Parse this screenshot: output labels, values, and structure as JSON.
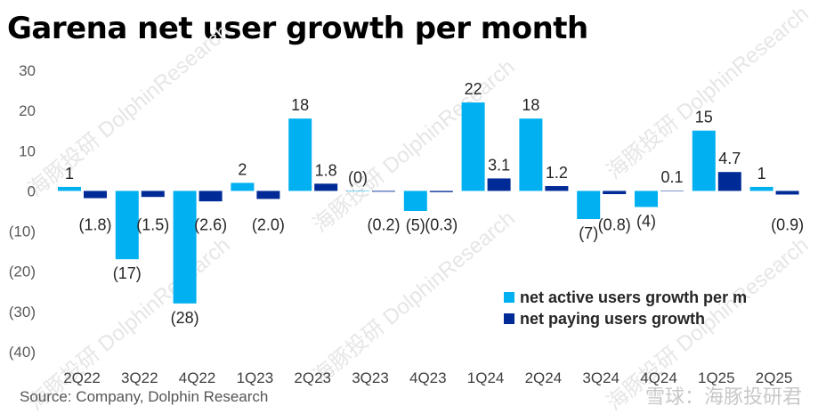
{
  "title": "Garena net user growth per month",
  "source": "Source: Company, Dolphin Research",
  "watermark": "雪球：海豚投研君",
  "watermark_bg": "海豚投研 DolphinResearch",
  "colors": {
    "active": "#00b0f0",
    "paying": "#002b96"
  },
  "chart_data": {
    "type": "bar",
    "categories": [
      "2Q22",
      "3Q22",
      "4Q22",
      "1Q23",
      "2Q23",
      "3Q23",
      "4Q23",
      "1Q24",
      "2Q24",
      "3Q24",
      "4Q24",
      "1Q25",
      "2Q25"
    ],
    "ylim": [
      -40,
      30
    ],
    "yticks": [
      30,
      20,
      10,
      0,
      -10,
      -20,
      -30,
      -40
    ],
    "ytick_labels": [
      "30",
      "20",
      "10",
      "0",
      "(10)",
      "(20)",
      "(30)",
      "(40)"
    ],
    "series": [
      {
        "name": "net active users growth per m",
        "values": [
          1,
          -17,
          -28,
          2,
          18,
          0,
          -5,
          22,
          18,
          -7,
          -4,
          15,
          1
        ],
        "labels": [
          "1",
          "(17)",
          "(28)",
          "2",
          "18",
          "(0)",
          "(5)",
          "22",
          "18",
          "(7)",
          "(4)",
          "15",
          "1"
        ]
      },
      {
        "name": "net paying users growth",
        "values": [
          -1.8,
          -1.5,
          -2.6,
          -2.0,
          1.8,
          -0.2,
          -0.3,
          3.1,
          1.2,
          -0.8,
          0.1,
          4.7,
          -0.9
        ],
        "labels": [
          "(1.8)",
          "(1.5)",
          "(2.6)",
          "(2.0)",
          "1.8",
          "(0.2)",
          "(0.3)",
          "3.1",
          "1.2",
          "(0.8)",
          "0.1",
          "4.7",
          "(0.9)"
        ]
      }
    ],
    "legend_position": "bottom-right",
    "grid": false
  }
}
